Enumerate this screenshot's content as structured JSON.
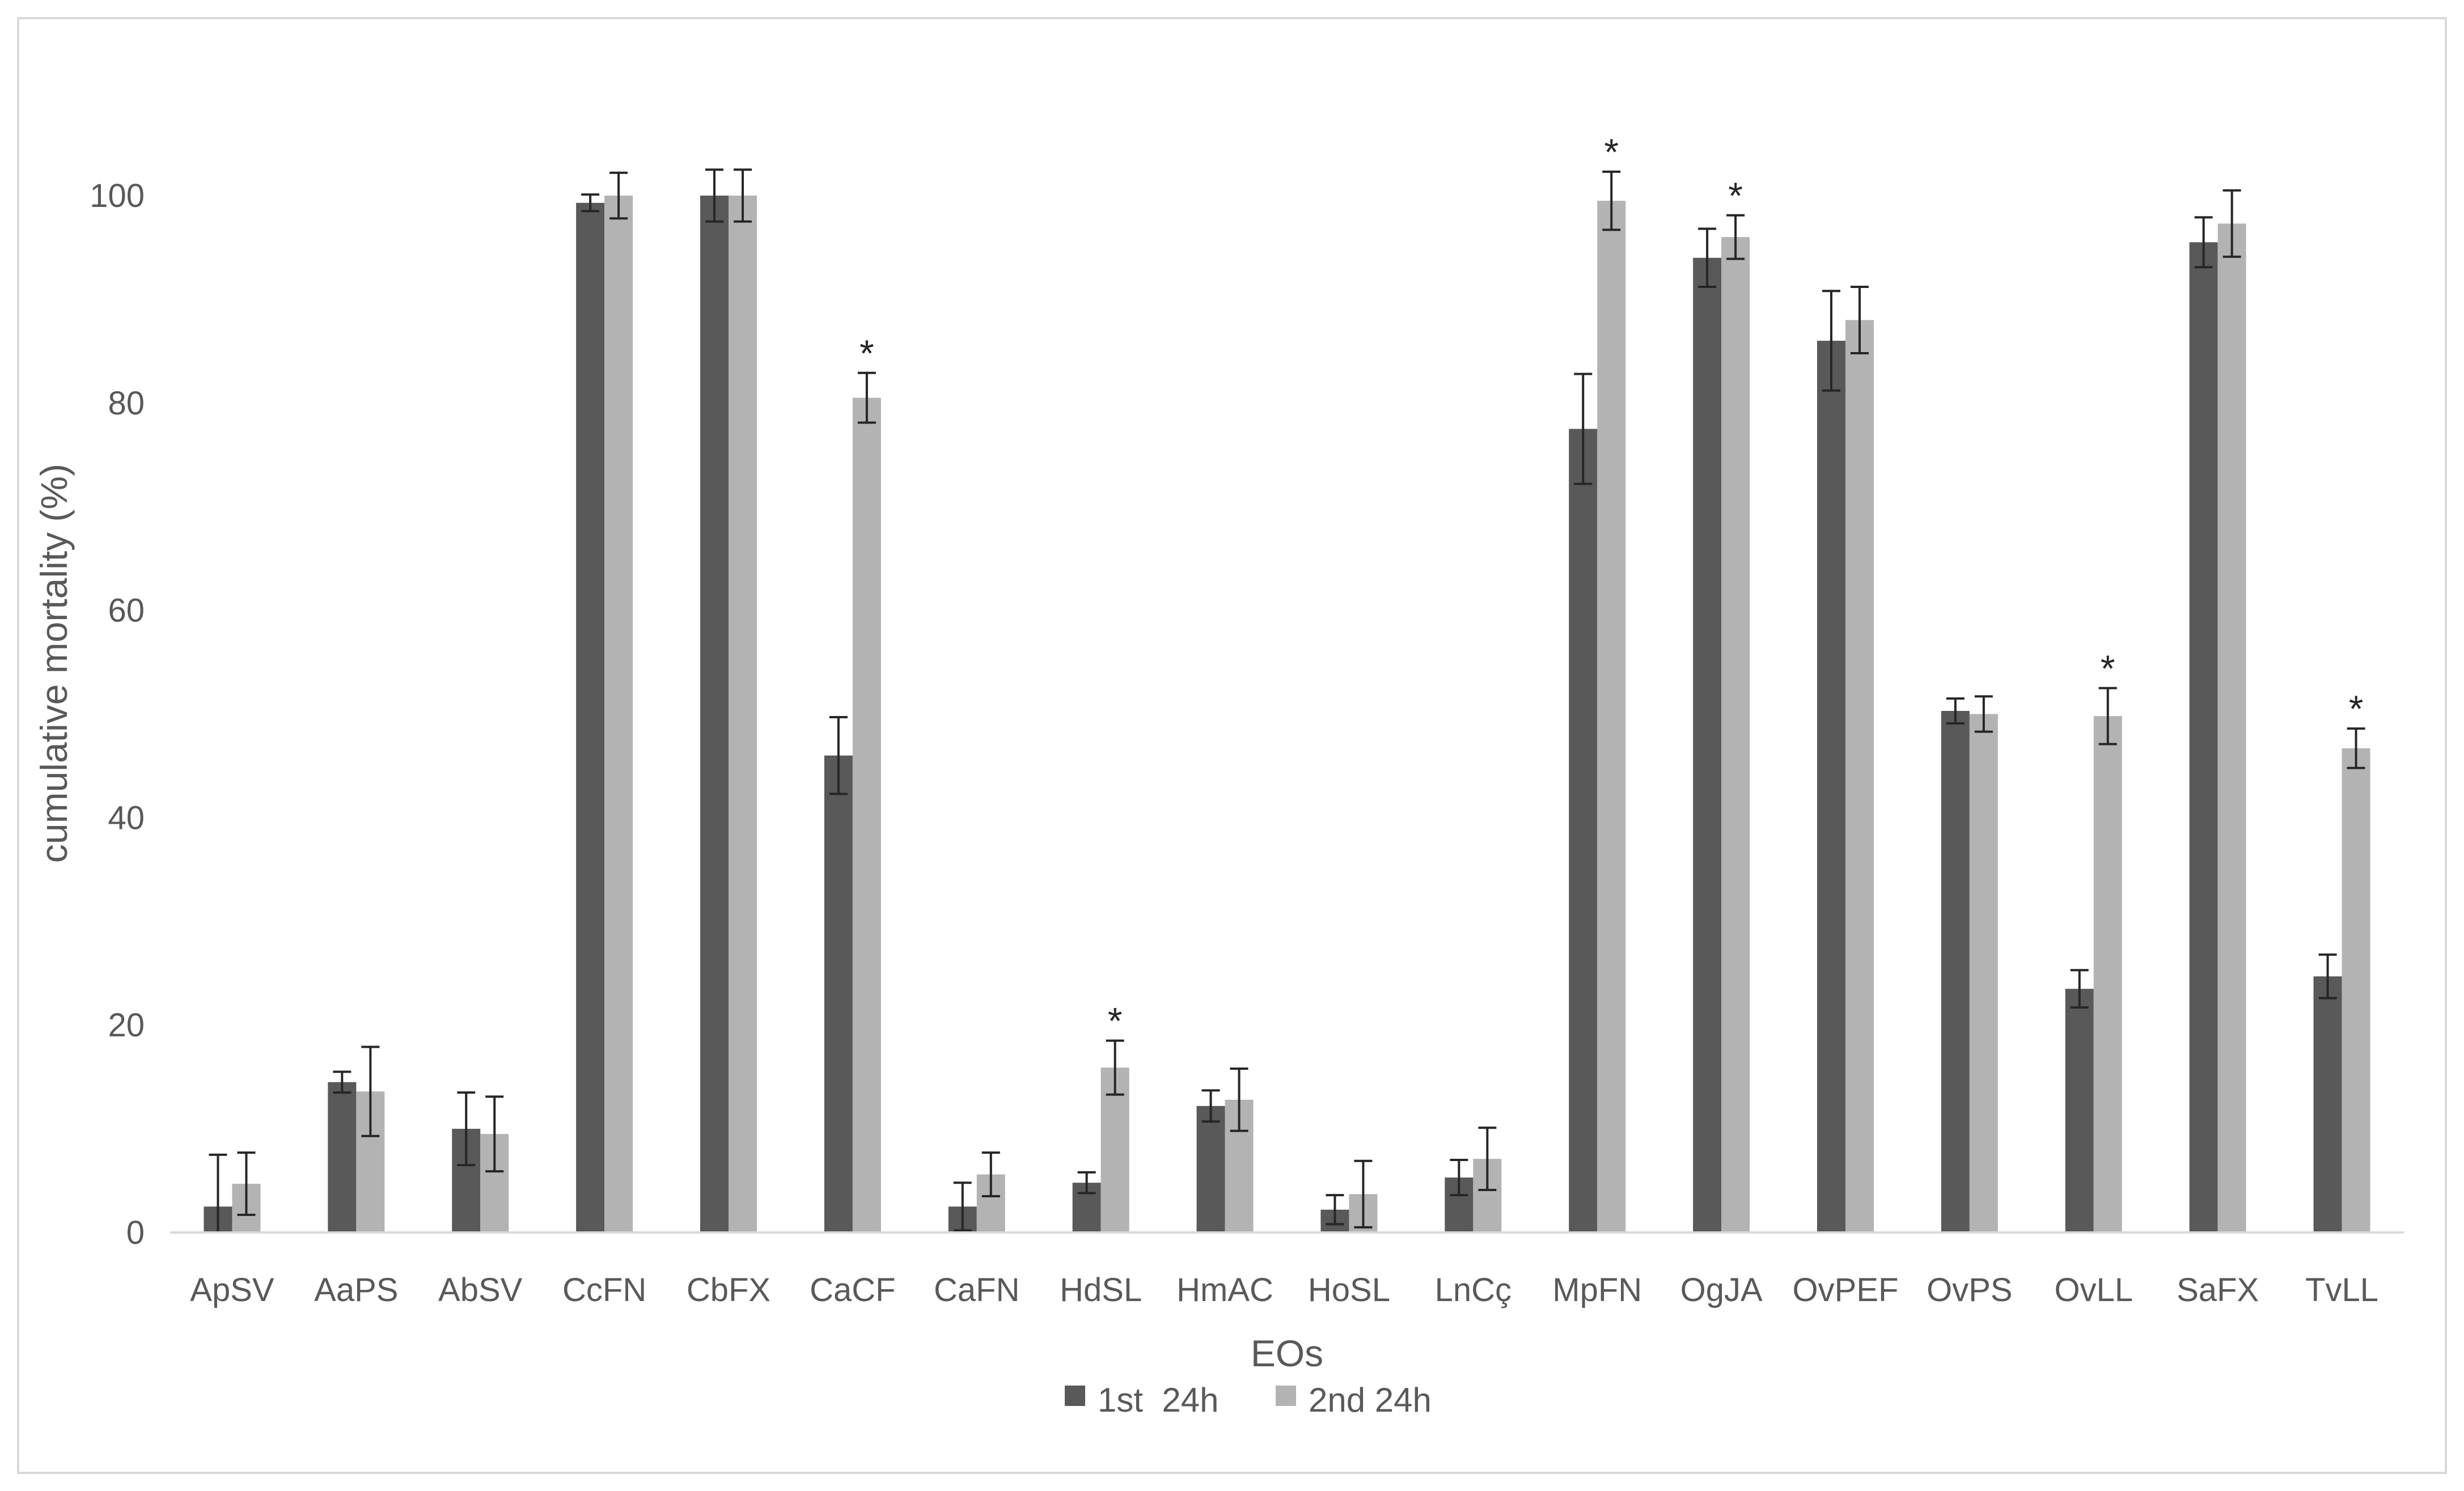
{
  "chart_data": {
    "type": "bar",
    "title": "",
    "xlabel": "EOs",
    "ylabel": "cumulative mortality (%)",
    "ylim": [
      0,
      100
    ],
    "yticks": [
      0,
      20,
      40,
      60,
      80,
      100
    ],
    "grid": false,
    "legend_position": "bottom",
    "categories": [
      "ApSV",
      "AaPS",
      "AbSV",
      "CcFN",
      "CbFX",
      "CaCF",
      "CaFN",
      "HdSL",
      "HmAC",
      "HoSL",
      "LnCç",
      "MpFN",
      "OgJA",
      "OvPEF",
      "OvPS",
      "OvLL",
      "SaFX",
      "TvLL"
    ],
    "series": [
      {
        "name": "1st  24h",
        "color": "#595959",
        "values": [
          2.5,
          14.5,
          10,
          99.3,
          100,
          46,
          2.5,
          4.8,
          12.2,
          2.2,
          5.3,
          77.5,
          94,
          86,
          50.3,
          23.5,
          95.5,
          24.7
        ],
        "errors": [
          5,
          1,
          3.5,
          0.8,
          2.5,
          3.7,
          2.3,
          1,
          1.5,
          1.4,
          1.7,
          5.3,
          2.8,
          4.8,
          1.2,
          1.8,
          2.4,
          2.1
        ]
      },
      {
        "name": "2nd 24h",
        "color": "#b3b3b3",
        "values": [
          4.7,
          13.6,
          9.5,
          100,
          100,
          80.5,
          5.6,
          15.9,
          12.8,
          3.7,
          7.1,
          99.5,
          96,
          88,
          50,
          49.8,
          97.3,
          46.7
        ],
        "errors": [
          3,
          4.3,
          3.6,
          2.2,
          2.5,
          2.4,
          2.1,
          2.6,
          3,
          3.2,
          3,
          2.8,
          2.1,
          3.2,
          1.7,
          2.7,
          3.2,
          1.9
        ]
      }
    ],
    "significance_marker": "*",
    "significant_categories": [
      "CaCF",
      "HdSL",
      "MpFN",
      "OgJA",
      "OvLL",
      "TvLL"
    ]
  }
}
